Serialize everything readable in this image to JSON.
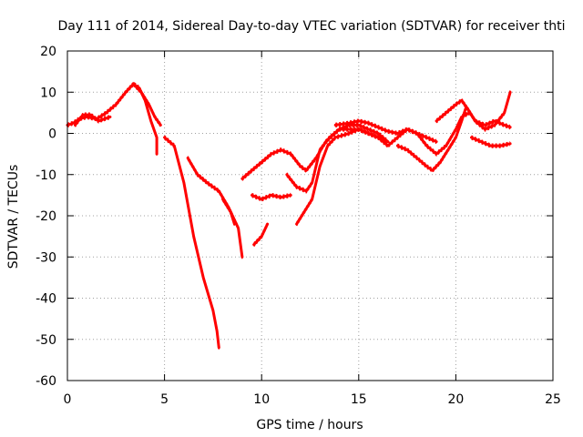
{
  "chart_data": {
    "type": "scatter",
    "title": "Day 111 of 2014, Sidereal Day-to-day VTEC variation (SDTVAR) for receiver thti",
    "xlabel": "GPS time / hours",
    "ylabel": "SDTVAR / TECUs",
    "xlim": [
      0,
      25
    ],
    "ylim": [
      -60,
      20
    ],
    "xticks": [
      0,
      5,
      10,
      15,
      20,
      25
    ],
    "yticks": [
      -60,
      -50,
      -40,
      -30,
      -20,
      -10,
      0,
      10,
      20
    ],
    "grid": true,
    "legend": "none",
    "marker": "plus",
    "color": "#ff0000",
    "series": [
      {
        "points": [
          [
            0.0,
            2
          ],
          [
            0.3,
            2.5
          ],
          [
            0.6,
            3.5
          ],
          [
            1.0,
            4
          ],
          [
            1.5,
            3.5
          ],
          [
            2.0,
            5
          ],
          [
            2.5,
            7
          ],
          [
            3.0,
            10
          ],
          [
            3.4,
            12
          ],
          [
            3.7,
            11
          ],
          [
            4.0,
            8
          ],
          [
            4.3,
            3
          ],
          [
            4.6,
            -1
          ],
          [
            4.6,
            -5
          ]
        ]
      },
      {
        "points": [
          [
            0.4,
            2
          ],
          [
            0.8,
            4.5
          ],
          [
            1.2,
            4.5
          ],
          [
            1.6,
            3
          ],
          [
            2.2,
            4
          ]
        ]
      },
      {
        "points": [
          [
            3.4,
            12
          ],
          [
            3.8,
            10
          ],
          [
            4.2,
            7
          ],
          [
            4.5,
            4
          ],
          [
            4.8,
            2
          ]
        ]
      },
      {
        "points": [
          [
            5.0,
            -1
          ],
          [
            5.5,
            -3
          ],
          [
            6.0,
            -12
          ],
          [
            6.5,
            -25
          ],
          [
            7.0,
            -35
          ],
          [
            7.5,
            -43
          ],
          [
            7.7,
            -48
          ],
          [
            7.8,
            -52
          ]
        ]
      },
      {
        "points": [
          [
            6.2,
            -6
          ],
          [
            6.7,
            -10
          ],
          [
            7.2,
            -12
          ],
          [
            7.8,
            -14
          ],
          [
            8.3,
            -18
          ],
          [
            8.8,
            -23
          ],
          [
            9.0,
            -30
          ]
        ]
      },
      {
        "points": [
          [
            8.0,
            -16
          ],
          [
            8.4,
            -19
          ],
          [
            8.6,
            -22
          ]
        ]
      },
      {
        "points": [
          [
            9.0,
            -11
          ],
          [
            9.5,
            -9
          ],
          [
            10.0,
            -7
          ],
          [
            10.5,
            -5
          ],
          [
            11.0,
            -4
          ],
          [
            11.5,
            -5
          ],
          [
            12.0,
            -8
          ],
          [
            12.3,
            -9
          ],
          [
            12.8,
            -6
          ],
          [
            13.3,
            -2
          ],
          [
            14.0,
            1
          ],
          [
            14.5,
            2
          ],
          [
            15.0,
            2
          ],
          [
            15.5,
            1
          ],
          [
            16.0,
            0
          ],
          [
            16.5,
            -2
          ]
        ]
      },
      {
        "points": [
          [
            9.5,
            -15
          ],
          [
            10.0,
            -16
          ],
          [
            10.5,
            -15
          ],
          [
            11.0,
            -15.5
          ],
          [
            11.5,
            -15
          ]
        ]
      },
      {
        "points": [
          [
            9.6,
            -27
          ],
          [
            10.0,
            -25
          ],
          [
            10.3,
            -22
          ]
        ]
      },
      {
        "points": [
          [
            11.3,
            -10
          ],
          [
            11.8,
            -13
          ],
          [
            12.3,
            -14
          ],
          [
            12.6,
            -12
          ],
          [
            13.0,
            -4
          ],
          [
            13.5,
            -1
          ],
          [
            14.0,
            1
          ],
          [
            14.5,
            1
          ],
          [
            15.0,
            1
          ],
          [
            15.5,
            0
          ],
          [
            16.0,
            -1
          ],
          [
            16.5,
            -3
          ],
          [
            17.0,
            -1
          ],
          [
            17.5,
            1
          ],
          [
            18.0,
            0
          ],
          [
            18.5,
            -3
          ],
          [
            19.0,
            -5
          ],
          [
            19.5,
            -3
          ],
          [
            20.0,
            1
          ],
          [
            20.3,
            4
          ],
          [
            20.7,
            5
          ]
        ]
      },
      {
        "points": [
          [
            11.8,
            -22
          ],
          [
            12.2,
            -19
          ],
          [
            12.6,
            -16
          ],
          [
            13.0,
            -8
          ],
          [
            13.4,
            -3
          ],
          [
            13.8,
            -1
          ],
          [
            14.5,
            0
          ],
          [
            15.0,
            1
          ],
          [
            15.5,
            0
          ],
          [
            16.0,
            -1
          ],
          [
            16.5,
            -2
          ]
        ]
      },
      {
        "points": [
          [
            13.8,
            2
          ],
          [
            14.5,
            2.5
          ],
          [
            15.0,
            3
          ],
          [
            15.5,
            2.5
          ],
          [
            16.0,
            1.5
          ],
          [
            16.5,
            0.5
          ],
          [
            17.0,
            0
          ],
          [
            17.5,
            1
          ],
          [
            18.0,
            0
          ],
          [
            18.5,
            -1
          ],
          [
            19.0,
            -2
          ]
        ]
      },
      {
        "points": [
          [
            17.0,
            -3
          ],
          [
            17.5,
            -4
          ],
          [
            18.0,
            -6
          ],
          [
            18.5,
            -8
          ],
          [
            18.8,
            -9
          ],
          [
            19.2,
            -7
          ],
          [
            19.6,
            -4
          ],
          [
            20.0,
            -1
          ],
          [
            20.3,
            3
          ],
          [
            20.5,
            6
          ]
        ]
      },
      {
        "points": [
          [
            19.0,
            3
          ],
          [
            19.5,
            5
          ],
          [
            20.0,
            7
          ],
          [
            20.3,
            8
          ],
          [
            20.6,
            6
          ],
          [
            21.0,
            3
          ],
          [
            21.5,
            1
          ],
          [
            22.0,
            2
          ],
          [
            22.5,
            5
          ],
          [
            22.8,
            10
          ]
        ]
      },
      {
        "points": [
          [
            20.6,
            6
          ],
          [
            21.0,
            3
          ],
          [
            21.5,
            2
          ],
          [
            22.0,
            3
          ],
          [
            22.5,
            2
          ],
          [
            22.8,
            1.5
          ]
        ]
      },
      {
        "points": [
          [
            20.8,
            -1
          ],
          [
            21.3,
            -2
          ],
          [
            21.8,
            -3
          ],
          [
            22.3,
            -3
          ],
          [
            22.8,
            -2.5
          ]
        ]
      }
    ]
  }
}
